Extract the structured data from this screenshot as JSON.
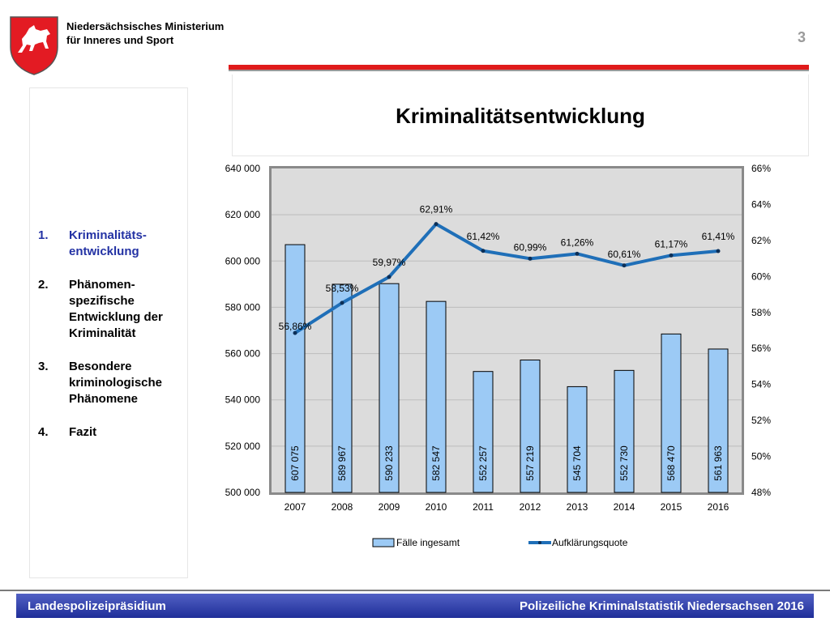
{
  "header": {
    "ministry_line1": "Niedersächsisches Ministerium",
    "ministry_line2": "für Inneres und Sport",
    "page_number": "3",
    "title": "Kriminalitätsentwicklung"
  },
  "sidebar": {
    "items": [
      {
        "num": "1.",
        "label": "Kriminalitäts-\nentwicklung",
        "active": true
      },
      {
        "num": "2.",
        "label": "Phänomen-\nspezifische\nEntwicklung der\nKriminalität",
        "active": false
      },
      {
        "num": "3.",
        "label": "Besondere\nkriminologische\nPhänomene",
        "active": false
      },
      {
        "num": "4.",
        "label": "Fazit",
        "active": false
      }
    ]
  },
  "footer": {
    "left": "Landespolizeipräsidium",
    "right": "Polizeiliche Kriminalstatistik Niedersachsen 2016"
  },
  "colors": {
    "bar": "#9ccaf5",
    "line": "#1f6fb8",
    "plot_bg": "#dcdcdc",
    "accent_red": "#e01b1b",
    "footer": "#2a3aa6",
    "toc_active": "#2332a4"
  },
  "chart_data": {
    "type": "bar",
    "title": "",
    "categories": [
      "2007",
      "2008",
      "2009",
      "2010",
      "2011",
      "2012",
      "2013",
      "2014",
      "2015",
      "2016"
    ],
    "series": [
      {
        "name": "Fälle ingesamt",
        "type": "bar",
        "axis": "left",
        "values": [
          607075,
          589967,
          590233,
          582547,
          552257,
          557219,
          545704,
          552730,
          568470,
          561963
        ],
        "labels": [
          "607 075",
          "589 967",
          "590 233",
          "582 547",
          "552 257",
          "557 219",
          "545 704",
          "552 730",
          "568 470",
          "561 963"
        ]
      },
      {
        "name": "Aufklärungsquote",
        "type": "line",
        "axis": "right",
        "values": [
          56.86,
          58.53,
          59.97,
          62.91,
          61.42,
          60.99,
          61.26,
          60.61,
          61.17,
          61.41
        ],
        "labels": [
          "56,86%",
          "58,53%",
          "59,97%",
          "62,91%",
          "61,42%",
          "60,99%",
          "61,26%",
          "60,61%",
          "61,17%",
          "61,41%"
        ]
      }
    ],
    "ylim_left": [
      500000,
      640000
    ],
    "yticks_left": [
      "500 000",
      "520 000",
      "540 000",
      "560 000",
      "580 000",
      "600 000",
      "620 000",
      "640 000"
    ],
    "ylim_right": [
      48,
      66
    ],
    "yticks_right": [
      "48%",
      "50%",
      "52%",
      "54%",
      "56%",
      "58%",
      "60%",
      "62%",
      "64%",
      "66%"
    ],
    "grid": true,
    "legend": "bottom"
  }
}
